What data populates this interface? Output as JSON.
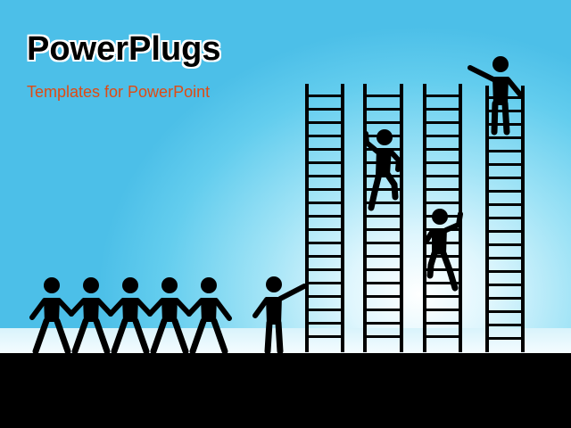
{
  "slide": {
    "title": "PowerPlugs",
    "subtitle": "Templates for PowerPoint"
  },
  "colors": {
    "sky_top": "#4cbfe8",
    "sky_glow": "#ffffff",
    "ground": "#000000",
    "figures": "#000000",
    "title_text": "#000000",
    "title_outline": "#ffffff",
    "subtitle_text": "#e04a12"
  },
  "scene": {
    "ladder_count": 4,
    "figures": {
      "queue_people": 5,
      "pointing_person": 1,
      "climbers": 2,
      "top_person": 1
    }
  }
}
